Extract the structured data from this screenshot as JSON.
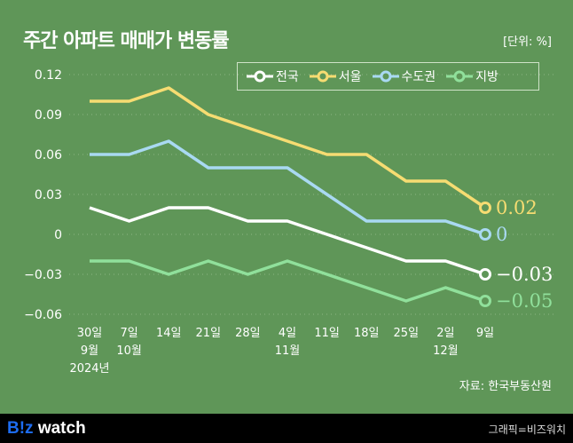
{
  "title": "주간 아파트 매매가 변동률",
  "unit": "[단위: %]",
  "source": "자료: 한국부동산원",
  "footer": {
    "logo_b": "B!z",
    "logo_rest": " watch",
    "credit": "그래픽=비즈워치"
  },
  "chart_data": {
    "type": "line",
    "title": "주간 아파트 매매가 변동률",
    "ylim": [
      -0.06,
      0.12
    ],
    "yticks": [
      0.12,
      0.09,
      0.06,
      0.03,
      0,
      -0.03,
      -0.06
    ],
    "ytick_labels": [
      "0.12",
      "0.09",
      "0.06",
      "0.03",
      "0",
      "−0.03",
      "−0.06"
    ],
    "categories": [
      "30일",
      "7일",
      "14일",
      "21일",
      "28일",
      "4일",
      "11일",
      "18일",
      "25일",
      "2일",
      "9일"
    ],
    "month_labels": [
      {
        "index": 0,
        "text": "9월"
      },
      {
        "index": 1,
        "text": "10월"
      },
      {
        "index": 5,
        "text": "11월"
      },
      {
        "index": 9,
        "text": "12월"
      }
    ],
    "year_label": {
      "index": 0,
      "text": "2024년"
    },
    "legend_position": "top-right",
    "series": [
      {
        "name": "전국",
        "color": "#ffffff",
        "values": [
          0.02,
          0.01,
          0.02,
          0.02,
          0.01,
          0.01,
          0,
          -0.01,
          -0.02,
          -0.02,
          -0.03
        ],
        "end_label": "-0.03"
      },
      {
        "name": "서울",
        "color": "#f6dc72",
        "values": [
          0.1,
          0.1,
          0.11,
          0.09,
          0.08,
          0.07,
          0.06,
          0.06,
          0.04,
          0.04,
          0.02
        ],
        "end_label": "0.02"
      },
      {
        "name": "수도권",
        "color": "#a9d9f2",
        "values": [
          0.06,
          0.06,
          0.07,
          0.05,
          0.05,
          0.05,
          0.03,
          0.01,
          0.01,
          0.01,
          0
        ],
        "end_label": "0"
      },
      {
        "name": "지방",
        "color": "#90e09b",
        "values": [
          -0.02,
          -0.02,
          -0.03,
          -0.02,
          -0.03,
          -0.02,
          -0.03,
          -0.04,
          -0.05,
          -0.04,
          -0.05
        ],
        "end_label": "-0.05"
      }
    ]
  }
}
